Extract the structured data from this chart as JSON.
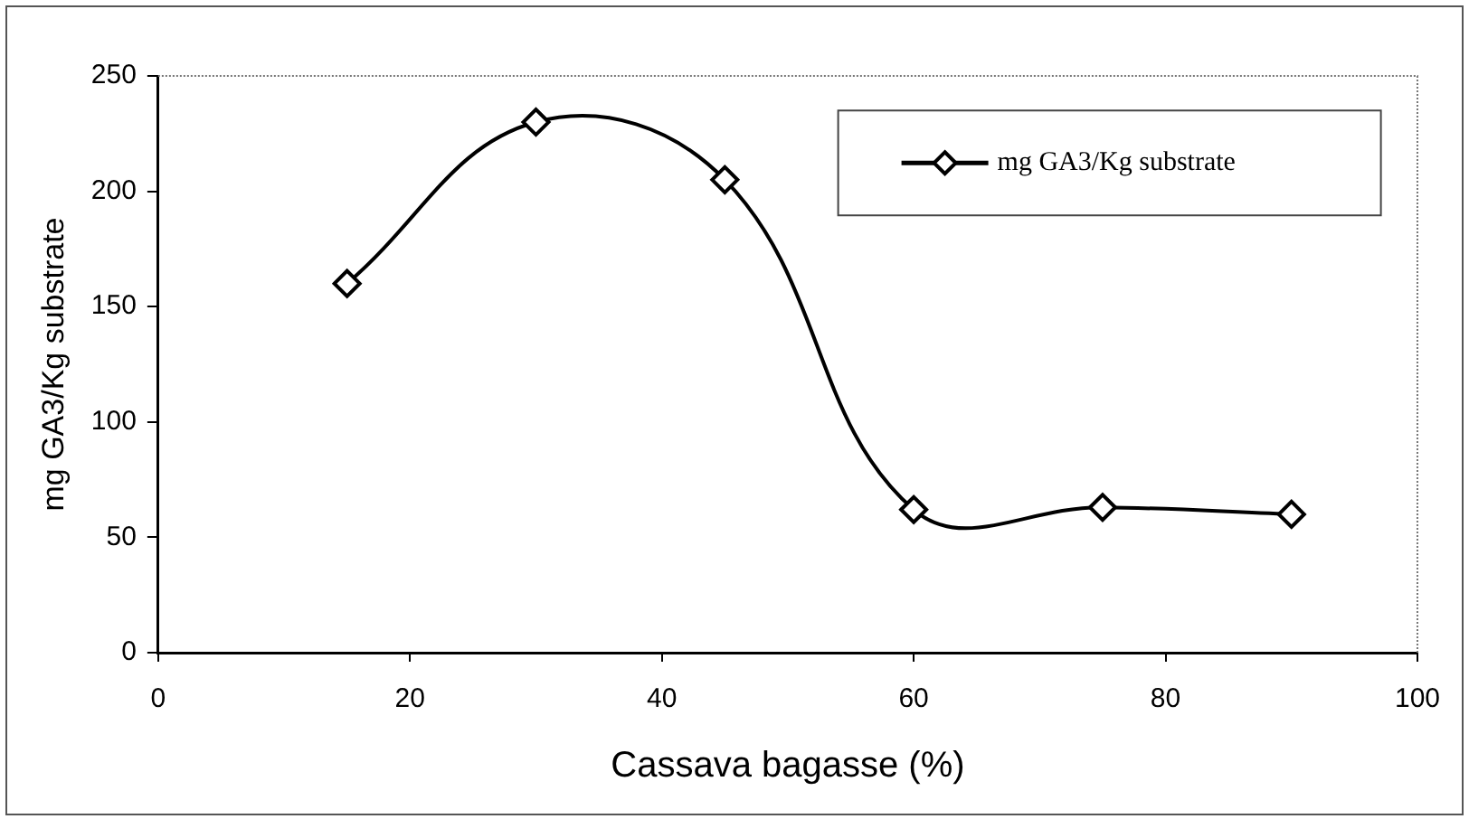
{
  "chart_data": {
    "type": "line",
    "xlabel": "Cassava bagasse (%)",
    "ylabel": "mg GA3/Kg substrate",
    "x": [
      15,
      30,
      45,
      60,
      75,
      90
    ],
    "series": [
      {
        "name": "mg GA3/Kg substrate",
        "color": "#000000",
        "values": [
          160,
          230,
          205,
          62,
          63,
          60
        ]
      }
    ],
    "xlim": [
      0,
      100
    ],
    "xticks": [
      0,
      20,
      40,
      60,
      80,
      100
    ],
    "ylim": [
      0,
      250
    ],
    "yticks": [
      0,
      50,
      100,
      150,
      200,
      250
    ],
    "grid": false,
    "legend": "top right",
    "marker": "diamond",
    "line_style": "solid"
  }
}
